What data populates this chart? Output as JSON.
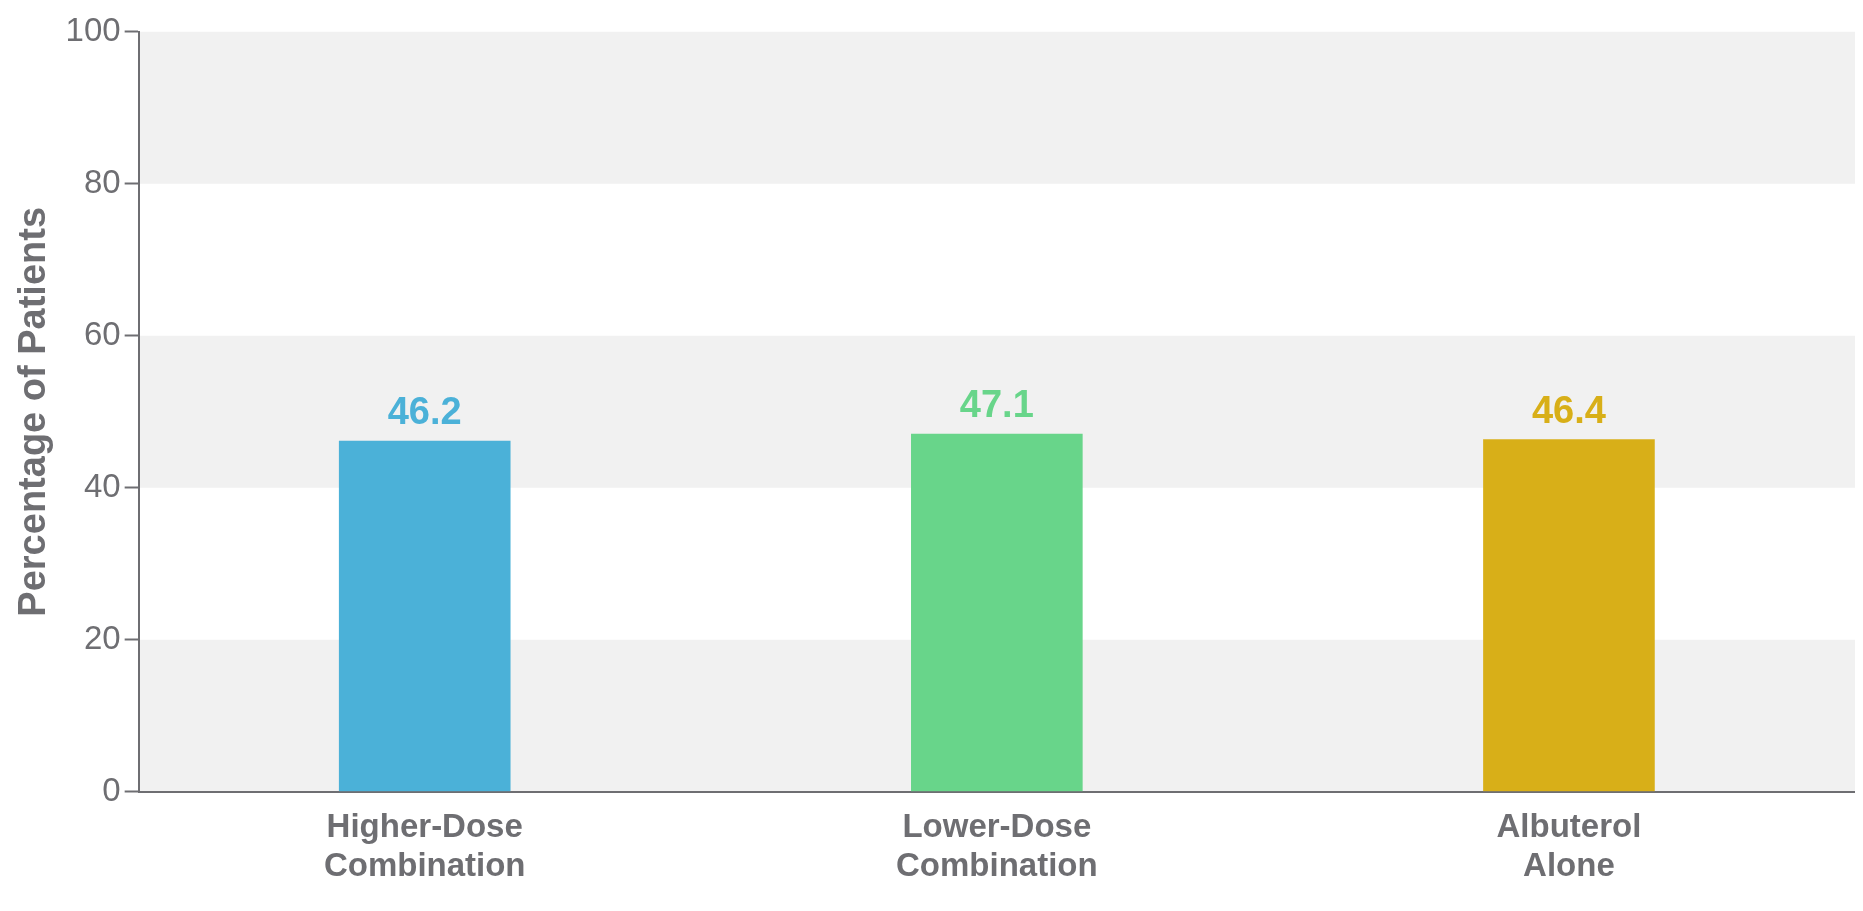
{
  "chart_data": {
    "type": "bar",
    "ylabel": "Percentage of Patients",
    "categories": [
      "Higher-Dose Combination",
      "Lower-Dose Combination",
      "Albuterol Alone"
    ],
    "values": [
      46.2,
      47.1,
      46.4
    ],
    "colors": [
      "#4bb1d8",
      "#68d58a",
      "#d8af18"
    ],
    "ylim": [
      0,
      100
    ],
    "yticks": [
      0,
      20,
      40,
      60,
      80,
      100
    ],
    "bands": [
      {
        "axis": "y",
        "from": 0,
        "to": 20,
        "color": "#f1f1f1"
      },
      {
        "axis": "y",
        "from": 40,
        "to": 60,
        "color": "#f1f1f1"
      },
      {
        "axis": "y",
        "from": 80,
        "to": 100,
        "color": "#f1f1f1"
      }
    ],
    "data_labels": true,
    "grid": false,
    "legend": false
  }
}
